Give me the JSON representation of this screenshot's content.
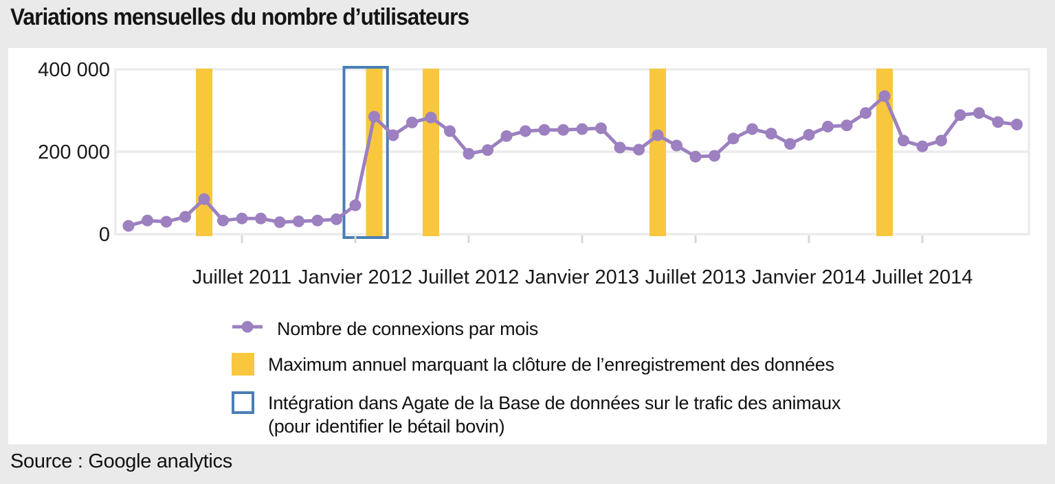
{
  "title": "Variations mensuelles du nombre d’utilisateurs",
  "source": "Source : Google analytics",
  "legend": {
    "connections": "Nombre de connexions par mois",
    "annual_max": "Maximum annuel marquant la clôture de l’enregistrement des données",
    "integration_line1": "Intégration dans Agate de la Base de données sur le trafic des animaux",
    "integration_line2": "(pour identifier le bétail bovin)"
  },
  "colors": {
    "line": "#9c80c0",
    "annual_max_bar": "#f8c73e",
    "integration_box_border": "#4a7eb5",
    "grid": "#ececec",
    "tick": "#d7d7d7",
    "page_background": "#eaeaea",
    "panel_background": "#ffffff",
    "text": "#191919"
  },
  "chart_data": {
    "type": "line",
    "title": "Variations mensuelles du nombre d’utilisateurs",
    "xlabel": "",
    "ylabel": "",
    "ylim": [
      0,
      400000
    ],
    "grid": "horizontal",
    "x_period": "mensuel, janvier 2011 – décembre 2014",
    "x_tick_labels": [
      "Juillet 2011",
      "Janvier 2012",
      "Juillet 2012",
      "Janvier 2013",
      "Juillet 2013",
      "Janvier 2014",
      "Juillet 2014"
    ],
    "x_tick_month_indices": [
      6,
      12,
      18,
      24,
      30,
      36,
      42
    ],
    "y_ticks": [
      {
        "label": "400 000",
        "value": 400000
      },
      {
        "label": "200 000",
        "value": 200000
      },
      {
        "label": "0",
        "value": 0
      }
    ],
    "series": [
      {
        "name": "Nombre de connexions par mois",
        "values": [
          20000,
          33000,
          30000,
          42000,
          85000,
          33000,
          38000,
          38000,
          29000,
          31000,
          33000,
          36000,
          70000,
          285000,
          240000,
          271000,
          283000,
          250000,
          195000,
          204000,
          238000,
          250000,
          253000,
          253000,
          255000,
          257000,
          210000,
          205000,
          240000,
          215000,
          188000,
          190000,
          232000,
          255000,
          244000,
          219000,
          241000,
          261000,
          264000,
          294000,
          335000,
          227000,
          213000,
          227000,
          289000,
          294000,
          272000,
          266000
        ]
      }
    ],
    "annual_max_bars": {
      "label": "Maximum annuel marquant la clôture de l’enregistrement des données",
      "month_indices": [
        4,
        13,
        16,
        28,
        40
      ]
    },
    "integration_box": {
      "label": "Intégration dans Agate de la Base de données sur le trafic des animaux (pour identifier le bétail bovin)",
      "month_range": [
        11.4,
        13.7
      ]
    },
    "legend_position": "below"
  }
}
